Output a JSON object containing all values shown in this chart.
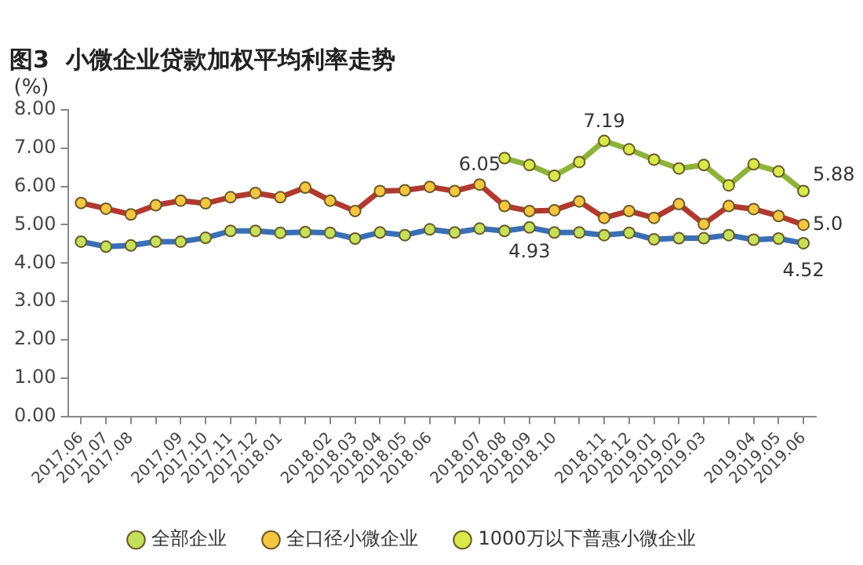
{
  "chart_data": {
    "type": "line",
    "title": "图3  小微企业贷款加权平均利率走势",
    "ylabel": "(%)",
    "categories": [
      "2017.06",
      "2017.07",
      "2017.08",
      null,
      "2017.09",
      "2017.10",
      "2017.11",
      "2017.12",
      "2018.01",
      null,
      "2018.02",
      "2018.03",
      "2018.04",
      "2018.05",
      "2018.06",
      null,
      "2018.07",
      "2018.08",
      "2018.09",
      "2018.10",
      null,
      "2018.11",
      "2018.12",
      "2019.01",
      "2019.02",
      "2019.03",
      null,
      "2019.04",
      "2019.05",
      "2019.06"
    ],
    "ylim": [
      0,
      8
    ],
    "yticks": [
      {
        "value": 0,
        "label": "0.00"
      },
      {
        "value": 1,
        "label": "1.00"
      },
      {
        "value": 2,
        "label": "2.00"
      },
      {
        "value": 3,
        "label": "3.00"
      },
      {
        "value": 4,
        "label": "4.00"
      },
      {
        "value": 5,
        "label": "5.00"
      },
      {
        "value": 6,
        "label": "6.00"
      },
      {
        "value": 7,
        "label": "7.00"
      },
      {
        "value": 8,
        "label": "8.00"
      }
    ],
    "series": [
      {
        "name": "全部企业",
        "color": "#3a6fb5",
        "values": [
          4.56,
          4.43,
          4.46,
          4.56,
          4.56,
          4.66,
          4.84,
          4.84,
          4.79,
          4.81,
          4.79,
          4.64,
          4.8,
          4.73,
          4.88,
          4.8,
          4.9,
          4.84,
          4.93,
          4.8,
          4.8,
          4.73,
          4.79,
          4.62,
          4.65,
          4.65,
          4.73,
          4.61,
          4.64,
          4.52
        ],
        "value_labels": [
          null,
          null,
          null,
          null,
          null,
          null,
          null,
          null,
          null,
          null,
          null,
          null,
          null,
          null,
          null,
          null,
          null,
          null,
          "4.93",
          null,
          null,
          null,
          null,
          null,
          null,
          null,
          null,
          null,
          null,
          "4.52"
        ]
      },
      {
        "name": "全口径小微企业",
        "color": "#b03a30",
        "values": [
          5.57,
          5.42,
          5.27,
          5.51,
          5.63,
          5.56,
          5.72,
          5.83,
          5.72,
          5.97,
          5.63,
          5.36,
          5.88,
          5.9,
          5.99,
          5.88,
          6.05,
          5.49,
          5.36,
          5.38,
          5.61,
          5.18,
          5.36,
          5.18,
          5.54,
          5.02,
          5.49,
          5.41,
          5.23,
          5.0
        ],
        "value_labels": [
          null,
          null,
          null,
          null,
          null,
          null,
          null,
          null,
          null,
          null,
          null,
          null,
          null,
          null,
          null,
          null,
          "6.05",
          null,
          null,
          null,
          null,
          null,
          null,
          null,
          null,
          null,
          null,
          null,
          null,
          "5.0"
        ]
      },
      {
        "name": "1000万以下普惠小微企业",
        "color": "#8db33a",
        "values": [
          null,
          null,
          null,
          null,
          null,
          null,
          null,
          null,
          null,
          null,
          null,
          null,
          null,
          null,
          null,
          null,
          null,
          6.74,
          6.56,
          6.28,
          6.64,
          7.19,
          6.97,
          6.7,
          6.47,
          6.56,
          6.03,
          6.58,
          6.39,
          5.88
        ],
        "value_labels": [
          null,
          null,
          null,
          null,
          null,
          null,
          null,
          null,
          null,
          null,
          null,
          null,
          null,
          null,
          null,
          null,
          null,
          null,
          null,
          null,
          null,
          "7.19",
          null,
          null,
          null,
          null,
          null,
          null,
          null,
          "5.88"
        ]
      }
    ],
    "marker": "circle",
    "grid": false,
    "legend": "bottom"
  }
}
